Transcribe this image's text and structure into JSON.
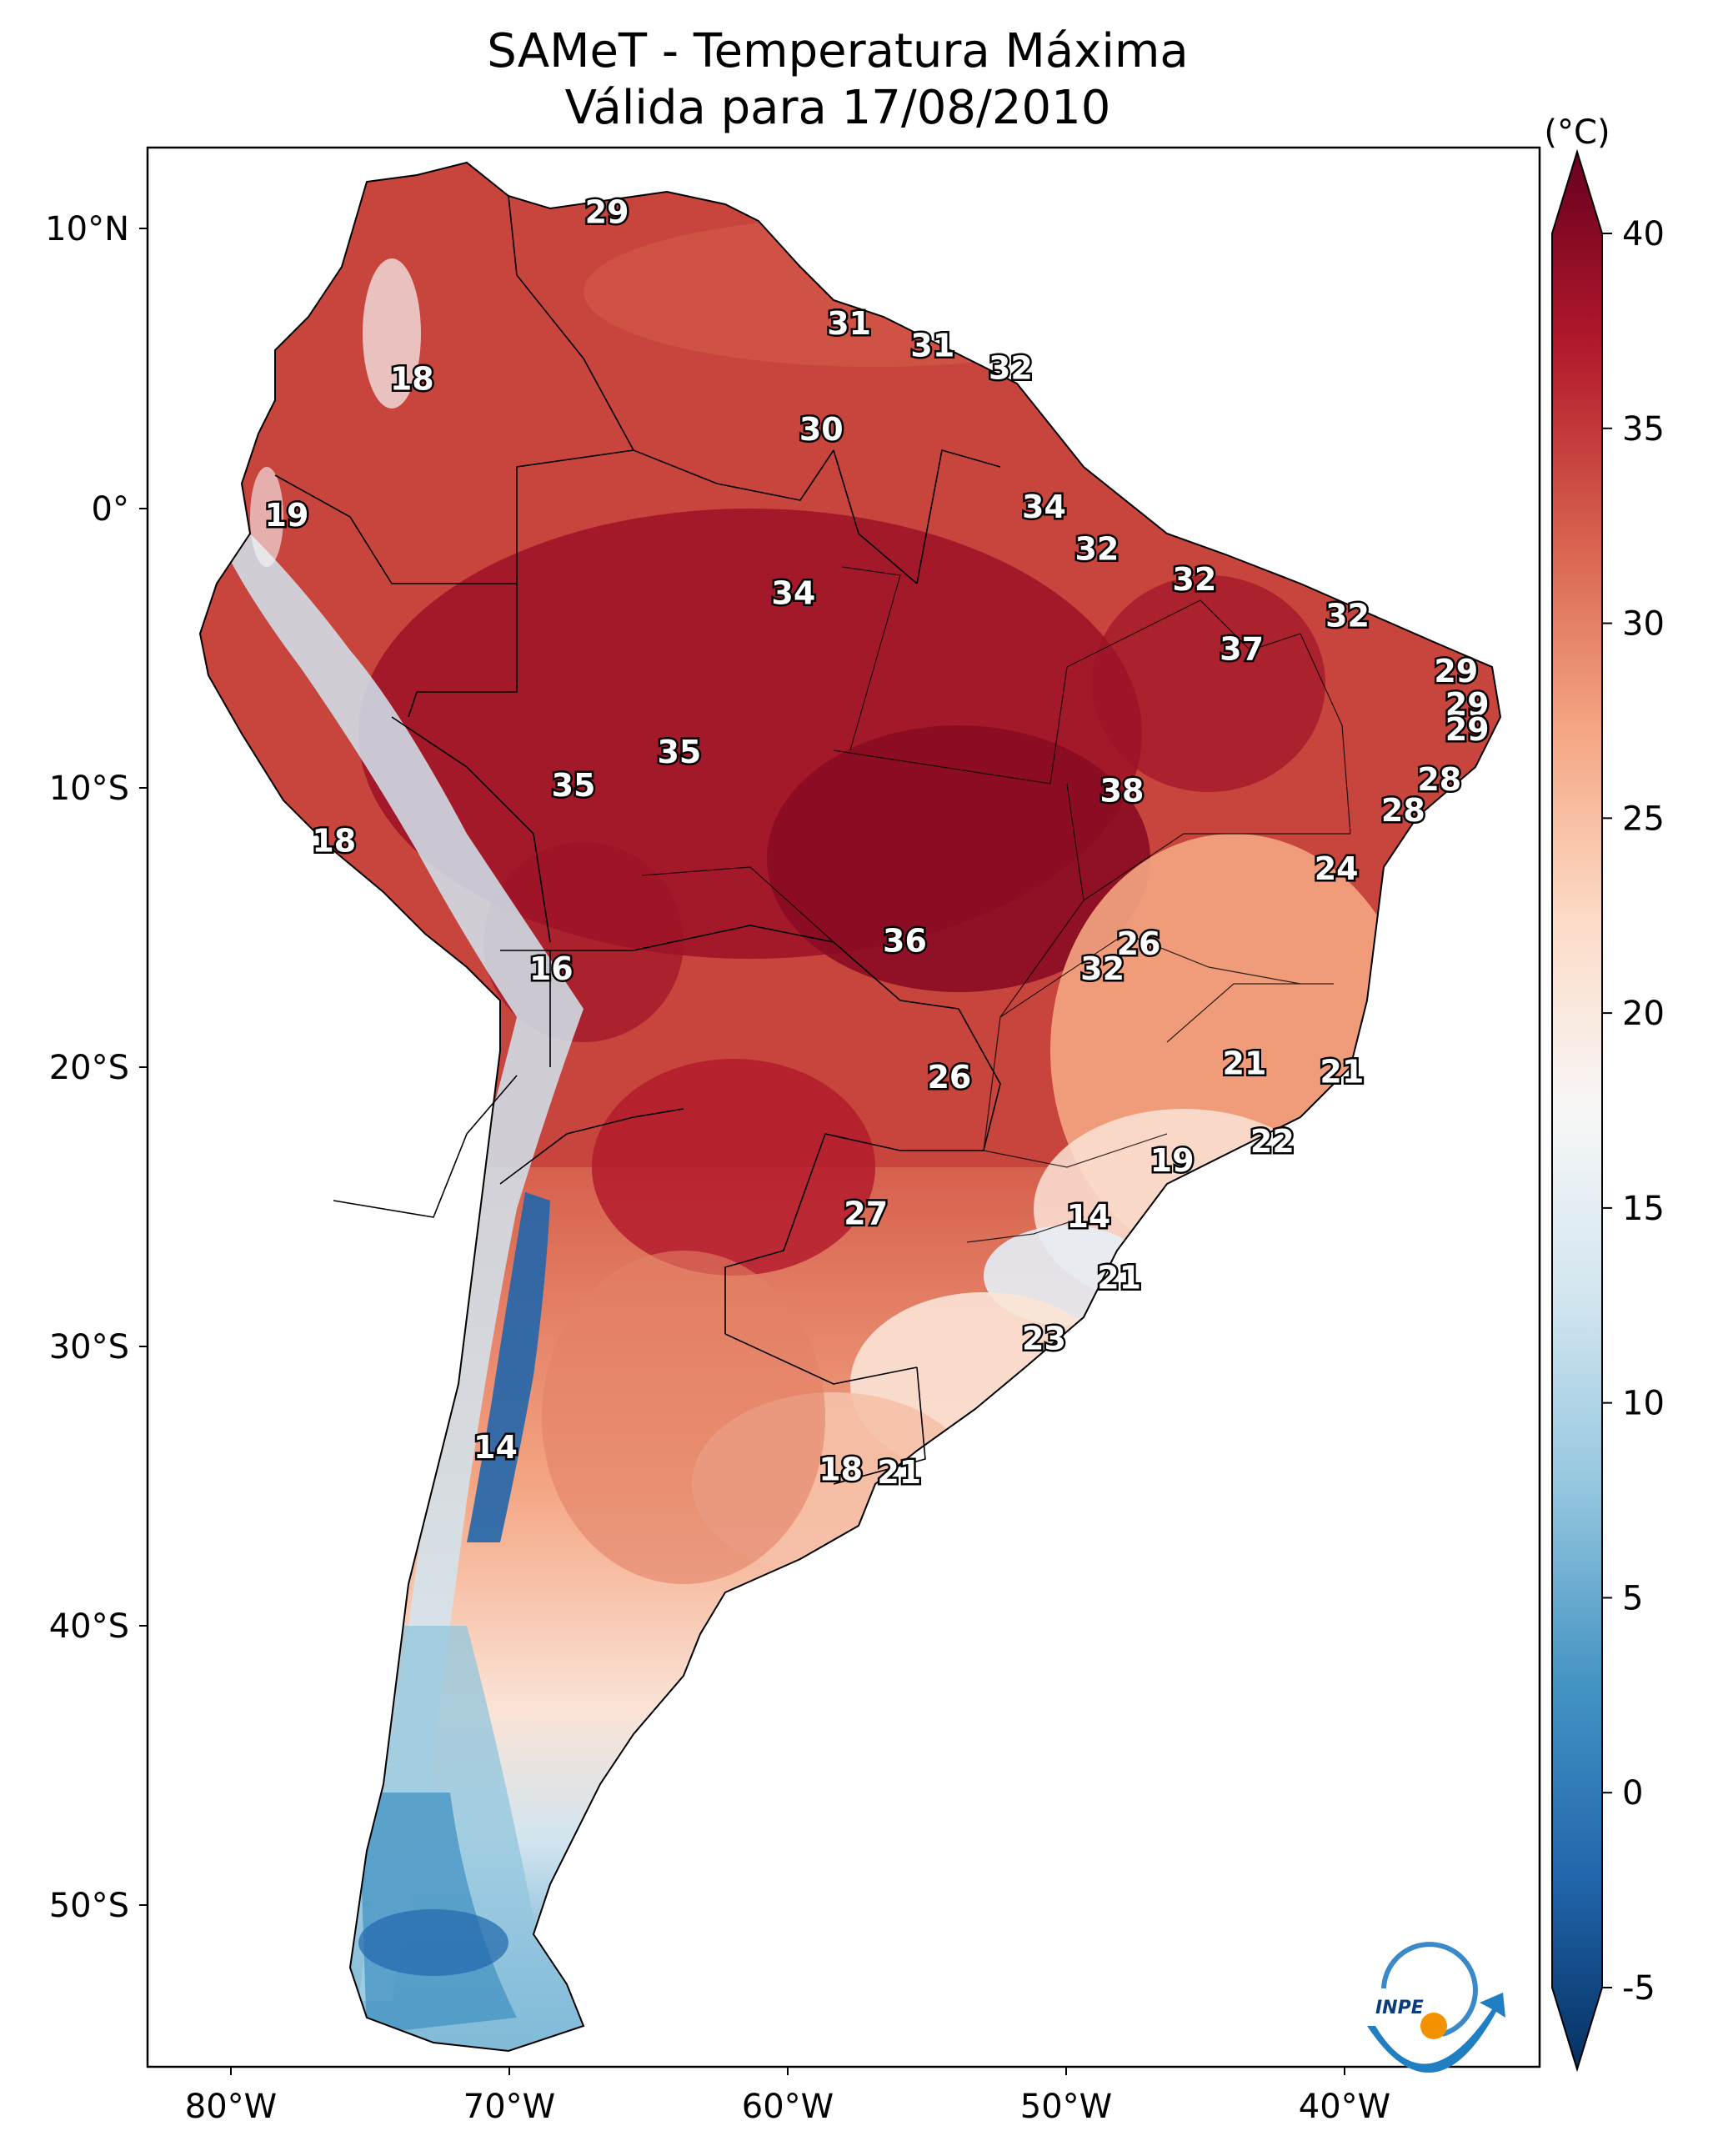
{
  "title": {
    "line1": "SAMeT - Temperatura Máxima",
    "line2": "Válida para 17/08/2010"
  },
  "map": {
    "lat_ticks": [
      "10°N",
      "0°",
      "10°S",
      "20°S",
      "30°S",
      "40°S",
      "50°S"
    ],
    "lon_ticks": [
      "80°W",
      "70°W",
      "60°W",
      "50°W",
      "40°W"
    ]
  },
  "colorbar": {
    "unit": "(°C)",
    "ticks": [
      "40",
      "35",
      "30",
      "25",
      "20",
      "15",
      "10",
      "5",
      "0",
      "-5"
    ],
    "range": [
      -5,
      40
    ],
    "colors": [
      "#053061",
      "#2166ac",
      "#4393c3",
      "#92c5de",
      "#d1e5f0",
      "#f7f7f7",
      "#fddbc7",
      "#f4a582",
      "#d6604d",
      "#b2182b",
      "#67001f"
    ]
  },
  "logo": {
    "text": "INPE"
  },
  "chart_data": {
    "type": "map",
    "title": "SAMeT - Temperatura Máxima — Válida para 17/08/2010",
    "variable": "Temperatura Máxima",
    "unit": "°C",
    "xlim": [
      -83,
      -33
    ],
    "ylim": [
      -56,
      13
    ],
    "labels": [
      {
        "value": "29",
        "lon": -66.5,
        "lat": 10.6
      },
      {
        "value": "31",
        "lon": -57.8,
        "lat": 6.6
      },
      {
        "value": "31",
        "lon": -54.8,
        "lat": 5.8
      },
      {
        "value": "32",
        "lon": -52.0,
        "lat": 5.0
      },
      {
        "value": "18",
        "lon": -73.5,
        "lat": 4.6
      },
      {
        "value": "30",
        "lon": -58.8,
        "lat": 2.8
      },
      {
        "value": "19",
        "lon": -78.0,
        "lat": -0.3
      },
      {
        "value": "34",
        "lon": -50.8,
        "lat": 0.0
      },
      {
        "value": "32",
        "lon": -48.9,
        "lat": -1.5
      },
      {
        "value": "34",
        "lon": -59.8,
        "lat": -3.1
      },
      {
        "value": "32",
        "lon": -45.4,
        "lat": -2.6
      },
      {
        "value": "32",
        "lon": -39.9,
        "lat": -3.9
      },
      {
        "value": "37",
        "lon": -43.7,
        "lat": -5.1
      },
      {
        "value": "29",
        "lon": -36.0,
        "lat": -5.9
      },
      {
        "value": "29",
        "lon": -35.6,
        "lat": -7.1
      },
      {
        "value": "29",
        "lon": -35.6,
        "lat": -8.0
      },
      {
        "value": "35",
        "lon": -63.9,
        "lat": -8.8
      },
      {
        "value": "35",
        "lon": -67.7,
        "lat": -10.0
      },
      {
        "value": "38",
        "lon": -48.0,
        "lat": -10.2
      },
      {
        "value": "28",
        "lon": -36.6,
        "lat": -9.8
      },
      {
        "value": "28",
        "lon": -37.9,
        "lat": -10.9
      },
      {
        "value": "18",
        "lon": -76.3,
        "lat": -12.0
      },
      {
        "value": "24",
        "lon": -40.3,
        "lat": -13.0
      },
      {
        "value": "36",
        "lon": -55.8,
        "lat": -15.6
      },
      {
        "value": "26",
        "lon": -47.4,
        "lat": -15.7
      },
      {
        "value": "32",
        "lon": -48.7,
        "lat": -16.6
      },
      {
        "value": "16",
        "lon": -68.5,
        "lat": -16.6
      },
      {
        "value": "21",
        "lon": -43.6,
        "lat": -20.0
      },
      {
        "value": "21",
        "lon": -40.1,
        "lat": -20.3
      },
      {
        "value": "26",
        "lon": -54.2,
        "lat": -20.5
      },
      {
        "value": "22",
        "lon": -42.6,
        "lat": -22.8
      },
      {
        "value": "19",
        "lon": -46.2,
        "lat": -23.5
      },
      {
        "value": "14",
        "lon": -49.2,
        "lat": -25.5
      },
      {
        "value": "27",
        "lon": -57.2,
        "lat": -25.4
      },
      {
        "value": "21",
        "lon": -48.1,
        "lat": -27.7
      },
      {
        "value": "23",
        "lon": -50.8,
        "lat": -29.9
      },
      {
        "value": "14",
        "lon": -70.5,
        "lat": -33.8
      },
      {
        "value": "18",
        "lon": -58.1,
        "lat": -34.6
      },
      {
        "value": "21",
        "lon": -56.0,
        "lat": -34.7
      }
    ],
    "colorbar": {
      "min": -5,
      "max": 40,
      "step": 5,
      "label": "(°C)"
    }
  }
}
